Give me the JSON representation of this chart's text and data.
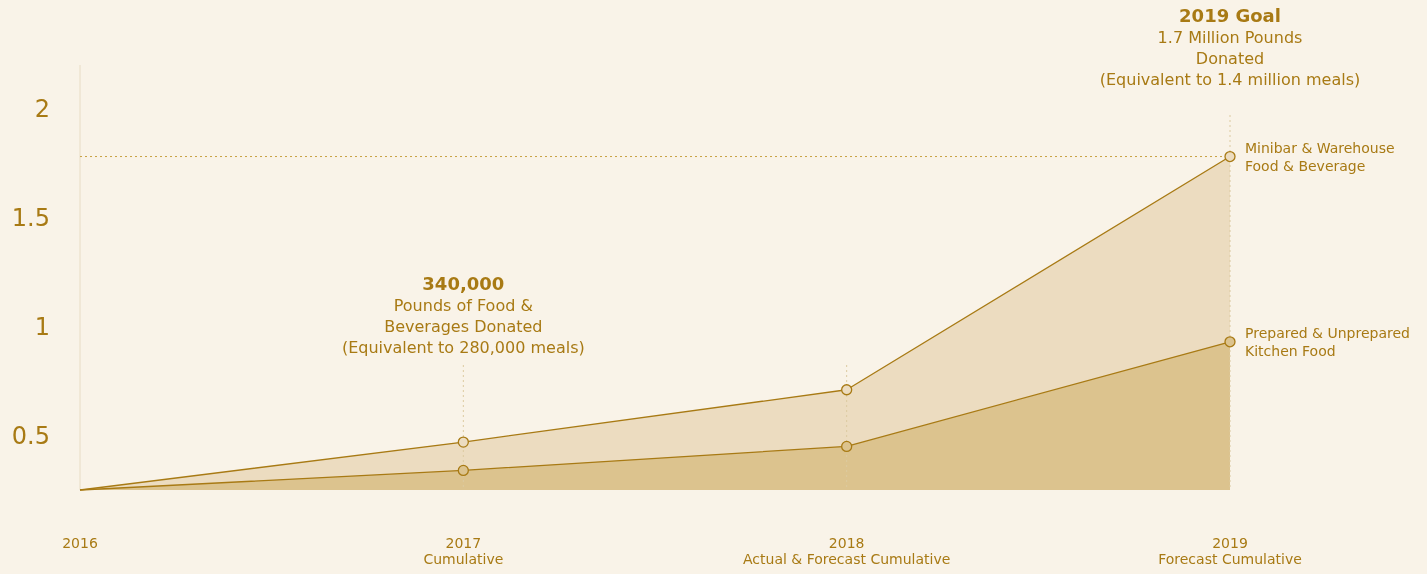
{
  "chart_data": {
    "type": "area",
    "x": [
      2016,
      2017,
      2018,
      2019
    ],
    "series": [
      {
        "name": "Minibar & Warehouse Food & Beverage",
        "color": "#ecdcc0",
        "values": [
          0.25,
          0.47,
          0.71,
          1.78
        ]
      },
      {
        "name": "Prepared & Unprepared Kitchen Food",
        "color": "#dcc38e",
        "values": [
          0.25,
          0.34,
          0.45,
          0.93
        ]
      }
    ],
    "xlim": [
      2016,
      2019
    ],
    "xticks": [
      2016,
      {
        "value": 2017,
        "label": "2017\nCumulative"
      },
      {
        "value": 2018,
        "label": "2018\nActual & Forecast Cumulative"
      },
      {
        "value": 2019,
        "label": "2019\nForecast Cumulative"
      }
    ],
    "ylim": [
      0.25,
      2.2
    ],
    "yticks": [
      0.5,
      1,
      1.5,
      2
    ],
    "grid": false,
    "legend": "right",
    "marker": "circle",
    "ref_lines": [
      {
        "axis": "y",
        "value": 1.78,
        "line_style": "dotted",
        "color": "#c8a040"
      },
      {
        "axis": "x",
        "value": 2017,
        "line_style": "dotted",
        "color": "#dccaa0"
      },
      {
        "axis": "x",
        "value": 2018,
        "line_style": "dotted",
        "color": "#dccaa0"
      },
      {
        "axis": "x",
        "value": 2019,
        "line_style": "dotted",
        "color": "#dccaa0"
      }
    ],
    "annotations": [
      "340,000\nPounds of Food &\nBeverages Donated\n(Equivalent to 280,000 meals)",
      "2019 Goal\n1.7 Million Pounds\nDonated\n(Equivalent to 1.4 million meals)"
    ]
  }
}
